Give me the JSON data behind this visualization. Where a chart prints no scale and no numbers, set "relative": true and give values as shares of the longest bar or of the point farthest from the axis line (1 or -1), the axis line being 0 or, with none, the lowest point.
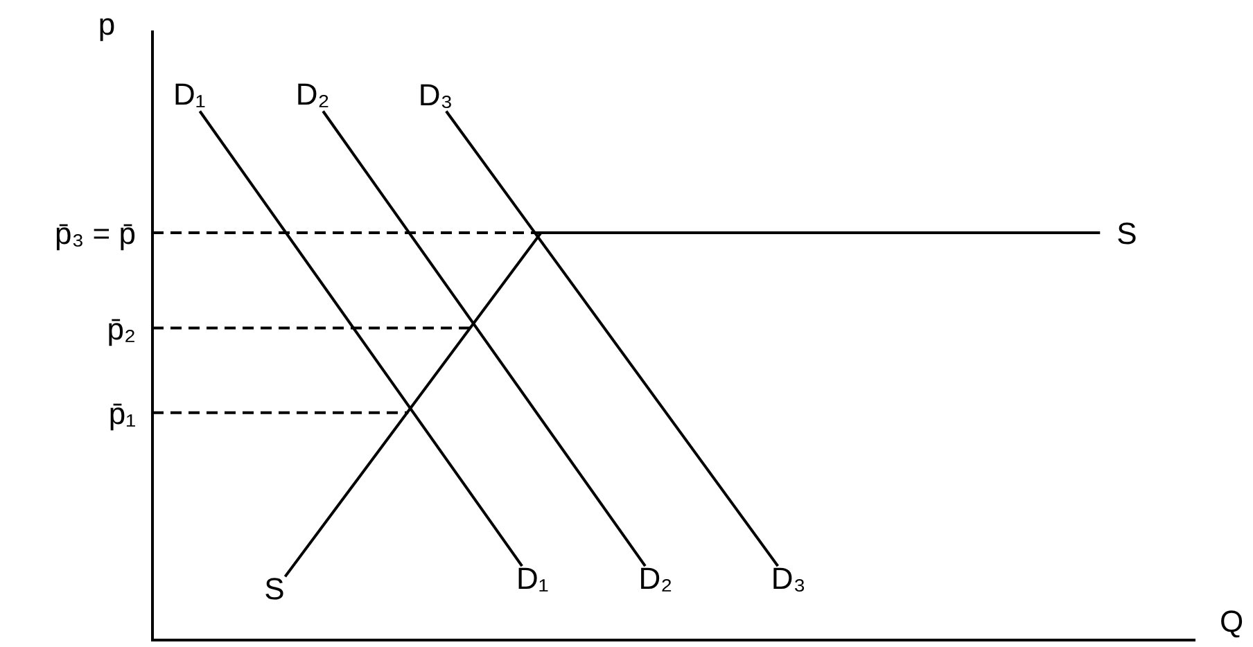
{
  "chart_data": {
    "type": "line",
    "relative": true,
    "xlabel": "Q",
    "ylabel": "p",
    "categories": [
      null,
      null,
      null,
      null,
      null,
      null,
      null,
      null,
      null,
      null,
      null,
      null,
      null,
      null,
      null,
      null,
      null,
      null,
      null,
      null,
      null,
      null,
      null,
      null,
      null,
      null,
      null,
      null,
      null,
      null,
      null,
      null,
      null,
      null,
      null,
      null,
      null,
      null,
      null,
      null,
      null,
      null,
      null,
      null,
      null,
      null,
      null,
      null,
      null,
      null,
      null,
      null,
      null,
      null,
      null,
      null,
      null,
      null,
      null,
      null,
      null,
      null,
      null,
      null,
      null,
      null,
      null,
      null,
      null,
      null,
      null,
      null,
      null,
      null,
      null,
      null,
      null,
      null,
      null,
      null,
      null,
      null,
      null,
      null,
      null,
      null,
      null,
      null,
      null,
      null,
      null,
      null,
      null,
      null,
      null,
      null,
      null,
      null,
      null,
      null,
      null,
      null,
      null,
      null,
      null,
      null,
      null,
      null,
      null,
      null,
      null
    ],
    "series": [
      {
        "name": "D₁",
        "color": "#000000",
        "values": [
          null,
          null,
          null,
          null,
          null,
          1,
          null,
          null,
          null,
          null,
          null,
          null,
          null,
          null,
          null,
          null,
          null,
          null,
          null,
          null,
          null,
          null,
          null,
          null,
          null,
          null,
          null,
          null,
          null,
          null,
          null,
          null,
          null,
          null,
          null,
          null,
          null,
          null,
          null,
          0.14,
          null,
          null,
          null,
          null,
          null,
          null,
          null,
          null,
          null,
          null,
          null,
          null,
          null,
          null,
          null,
          null,
          null,
          null,
          null,
          null,
          null,
          null,
          null,
          null,
          null,
          null,
          null,
          null,
          null,
          null,
          null,
          null,
          null,
          null,
          null,
          null,
          null,
          null,
          null,
          null,
          null,
          null,
          null,
          null,
          null,
          null,
          null,
          null,
          null,
          null,
          null,
          null,
          null,
          null,
          null,
          null,
          null,
          null,
          null,
          null,
          null,
          null,
          null,
          null,
          null,
          null,
          null,
          null,
          null,
          null,
          null
        ]
      },
      {
        "name": "D₂",
        "color": "#000000",
        "values": [
          null,
          null,
          null,
          null,
          null,
          null,
          null,
          null,
          null,
          null,
          null,
          null,
          null,
          null,
          null,
          null,
          null,
          null,
          1,
          null,
          null,
          null,
          null,
          null,
          null,
          null,
          null,
          null,
          null,
          null,
          null,
          null,
          null,
          null,
          null,
          null,
          null,
          null,
          null,
          null,
          null,
          null,
          null,
          null,
          null,
          null,
          null,
          null,
          null,
          null,
          null,
          null,
          0.14,
          null,
          null,
          null,
          null,
          null,
          null,
          null,
          null,
          null,
          null,
          null,
          null,
          null,
          null,
          null,
          null,
          null,
          null,
          null,
          null,
          null,
          null,
          null,
          null,
          null,
          null,
          null,
          null,
          null,
          null,
          null,
          null,
          null,
          null,
          null,
          null,
          null,
          null,
          null,
          null,
          null,
          null,
          null,
          null,
          null,
          null,
          null,
          null,
          null,
          null,
          null,
          null,
          null,
          null,
          null,
          null,
          null,
          null
        ]
      },
      {
        "name": "D₃",
        "color": "#000000",
        "values": [
          null,
          null,
          null,
          null,
          null,
          null,
          null,
          null,
          null,
          null,
          null,
          null,
          null,
          null,
          null,
          null,
          null,
          null,
          null,
          null,
          null,
          null,
          null,
          null,
          null,
          null,
          null,
          null,
          null,
          null,
          null,
          1,
          null,
          null,
          null,
          null,
          null,
          null,
          null,
          null,
          null,
          null,
          null,
          null,
          null,
          null,
          null,
          null,
          null,
          null,
          null,
          null,
          null,
          null,
          null,
          null,
          null,
          null,
          null,
          null,
          null,
          null,
          null,
          null,
          null,
          null,
          0.14,
          null,
          null,
          null,
          null,
          null,
          null,
          null,
          null,
          null,
          null,
          null,
          null,
          null,
          null,
          null,
          null,
          null,
          null,
          null,
          null,
          null,
          null,
          null,
          null,
          null,
          null,
          null,
          null,
          null,
          null,
          null,
          null,
          null,
          null,
          null,
          null,
          null,
          null,
          null,
          null,
          null,
          null,
          null,
          null
        ]
      },
      {
        "name": "S",
        "color": "#000000",
        "values": [
          null,
          null,
          null,
          null,
          null,
          null,
          null,
          null,
          null,
          null,
          null,
          null,
          null,
          null,
          0.12,
          null,
          null,
          null,
          null,
          null,
          null,
          null,
          null,
          null,
          null,
          null,
          null,
          null,
          null,
          null,
          null,
          null,
          null,
          null,
          null,
          null,
          null,
          null,
          null,
          null,
          null,
          0.77,
          null,
          null,
          null,
          null,
          null,
          null,
          null,
          null,
          null,
          null,
          null,
          null,
          null,
          null,
          null,
          null,
          null,
          null,
          null,
          null,
          null,
          null,
          null,
          null,
          null,
          null,
          null,
          null,
          null,
          null,
          null,
          null,
          null,
          null,
          null,
          null,
          null,
          null,
          null,
          null,
          null,
          null,
          null,
          null,
          null,
          null,
          null,
          null,
          null,
          null,
          null,
          null,
          null,
          null,
          null,
          null,
          null,
          null,
          0.77,
          null,
          null,
          null,
          null,
          null,
          null,
          null,
          null,
          null,
          null
        ]
      },
      {
        "name": "p̄₃ = p̄",
        "color": "#000000",
        "line_style": "dashed",
        "values": [
          0.77,
          null,
          null,
          null,
          null,
          null,
          null,
          null,
          null,
          null,
          null,
          null,
          null,
          null,
          null,
          null,
          null,
          null,
          null,
          null,
          null,
          null,
          null,
          null,
          null,
          null,
          null,
          null,
          null,
          null,
          null,
          null,
          null,
          null,
          null,
          null,
          null,
          null,
          null,
          null,
          null,
          0.77,
          null,
          null,
          null,
          null,
          null,
          null,
          null,
          null,
          null,
          null,
          null,
          null,
          null,
          null,
          null,
          null,
          null,
          null,
          null,
          null,
          null,
          null,
          null,
          null,
          null,
          null,
          null,
          null,
          null,
          null,
          null,
          null,
          null,
          null,
          null,
          null,
          null,
          null,
          null,
          null,
          null,
          null,
          null,
          null,
          null,
          null,
          null,
          null,
          null,
          null,
          null,
          null,
          null,
          null,
          null,
          null,
          null,
          null,
          null,
          null,
          null,
          null,
          null,
          null,
          null,
          null,
          null,
          null,
          null
        ]
      },
      {
        "name": "p̄₂",
        "color": "#000000",
        "line_style": "dashed",
        "values": [
          0.59,
          null,
          null,
          null,
          null,
          null,
          null,
          null,
          null,
          null,
          null,
          null,
          null,
          null,
          null,
          null,
          null,
          null,
          null,
          null,
          null,
          null,
          null,
          null,
          null,
          null,
          null,
          null,
          null,
          null,
          null,
          null,
          null,
          null,
          0.59,
          null,
          null,
          null,
          null,
          null,
          null,
          null,
          null,
          null,
          null,
          null,
          null,
          null,
          null,
          null,
          null,
          null,
          null,
          null,
          null,
          null,
          null,
          null,
          null,
          null,
          null,
          null,
          null,
          null,
          null,
          null,
          null,
          null,
          null,
          null,
          null,
          null,
          null,
          null,
          null,
          null,
          null,
          null,
          null,
          null,
          null,
          null,
          null,
          null,
          null,
          null,
          null,
          null,
          null,
          null,
          null,
          null,
          null,
          null,
          null,
          null,
          null,
          null,
          null,
          null,
          null,
          null,
          null,
          null,
          null,
          null,
          null,
          null,
          null,
          null,
          null
        ]
      },
      {
        "name": "p̄₁",
        "color": "#000000",
        "line_style": "dashed",
        "values": [
          0.43,
          null,
          null,
          null,
          null,
          null,
          null,
          null,
          null,
          null,
          null,
          null,
          null,
          null,
          null,
          null,
          null,
          null,
          null,
          null,
          null,
          null,
          null,
          null,
          null,
          null,
          null,
          0.43,
          null,
          null,
          null,
          null,
          null,
          null,
          null,
          null,
          null,
          null,
          null,
          null,
          null,
          null,
          null,
          null,
          null,
          null,
          null,
          null,
          null,
          null,
          null,
          null,
          null,
          null,
          null,
          null,
          null,
          null,
          null,
          null,
          null,
          null,
          null,
          null,
          null,
          null,
          null,
          null,
          null,
          null,
          null,
          null,
          null,
          null,
          null,
          null,
          null,
          null,
          null,
          null,
          null,
          null,
          null,
          null,
          null,
          null,
          null,
          null,
          null,
          null,
          null,
          null,
          null,
          null,
          null,
          null,
          null,
          null,
          null,
          null,
          null,
          null,
          null,
          null,
          null,
          null,
          null,
          null,
          null,
          null,
          null
        ]
      }
    ]
  }
}
